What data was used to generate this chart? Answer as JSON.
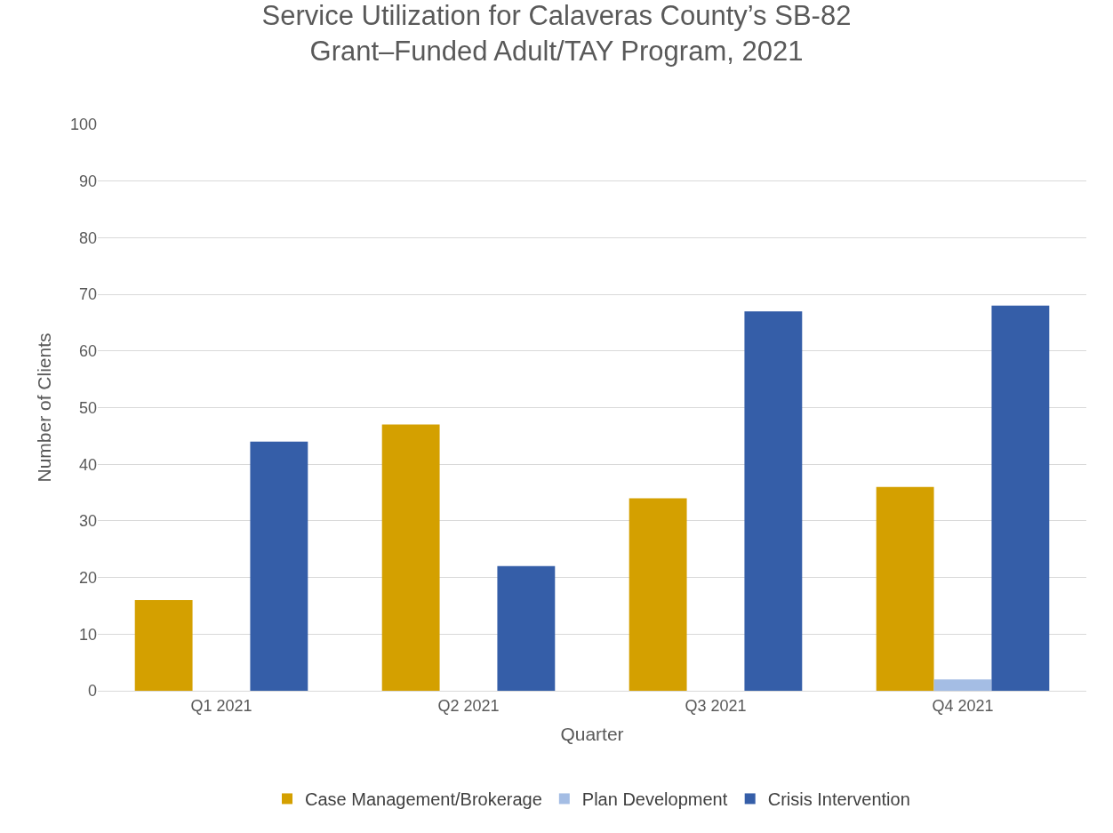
{
  "chart_data": {
    "type": "bar",
    "title": "Service Utilization for Calaveras County’s SB-82 Grant–Funded Adult/TAY Program, 2021",
    "xlabel": "Quarter",
    "ylabel": "Number of Clients",
    "categories": [
      "Q1 2021",
      "Q2 2021",
      "Q3 2021",
      "Q4 2021"
    ],
    "series": [
      {
        "name": "Case Management/Brokerage",
        "color": "#d4a000",
        "values": [
          16,
          47,
          34,
          36
        ]
      },
      {
        "name": "Plan Development",
        "color": "#a4bde4",
        "values": [
          0,
          0,
          0,
          2
        ]
      },
      {
        "name": "Crisis Intervention",
        "color": "#355ea8",
        "values": [
          44,
          22,
          67,
          68
        ]
      }
    ],
    "ylim": [
      0,
      100
    ],
    "yticks": [
      0,
      10,
      20,
      30,
      40,
      50,
      60,
      70,
      80,
      90,
      100
    ],
    "grid": "y",
    "legend": "bottom"
  }
}
